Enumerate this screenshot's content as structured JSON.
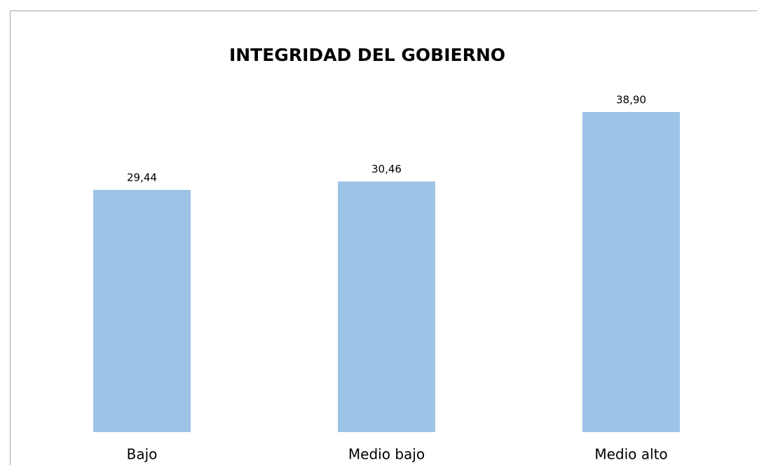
{
  "chart_data": {
    "type": "bar",
    "title": "INTEGRIDAD DEL GOBIERNO",
    "categories": [
      "Bajo",
      "Medio bajo",
      "Medio alto"
    ],
    "values": [
      29.44,
      30.46,
      38.9
    ],
    "value_labels": [
      "29,44",
      "30,46",
      "38,90"
    ],
    "color": "#9dc3e6"
  }
}
